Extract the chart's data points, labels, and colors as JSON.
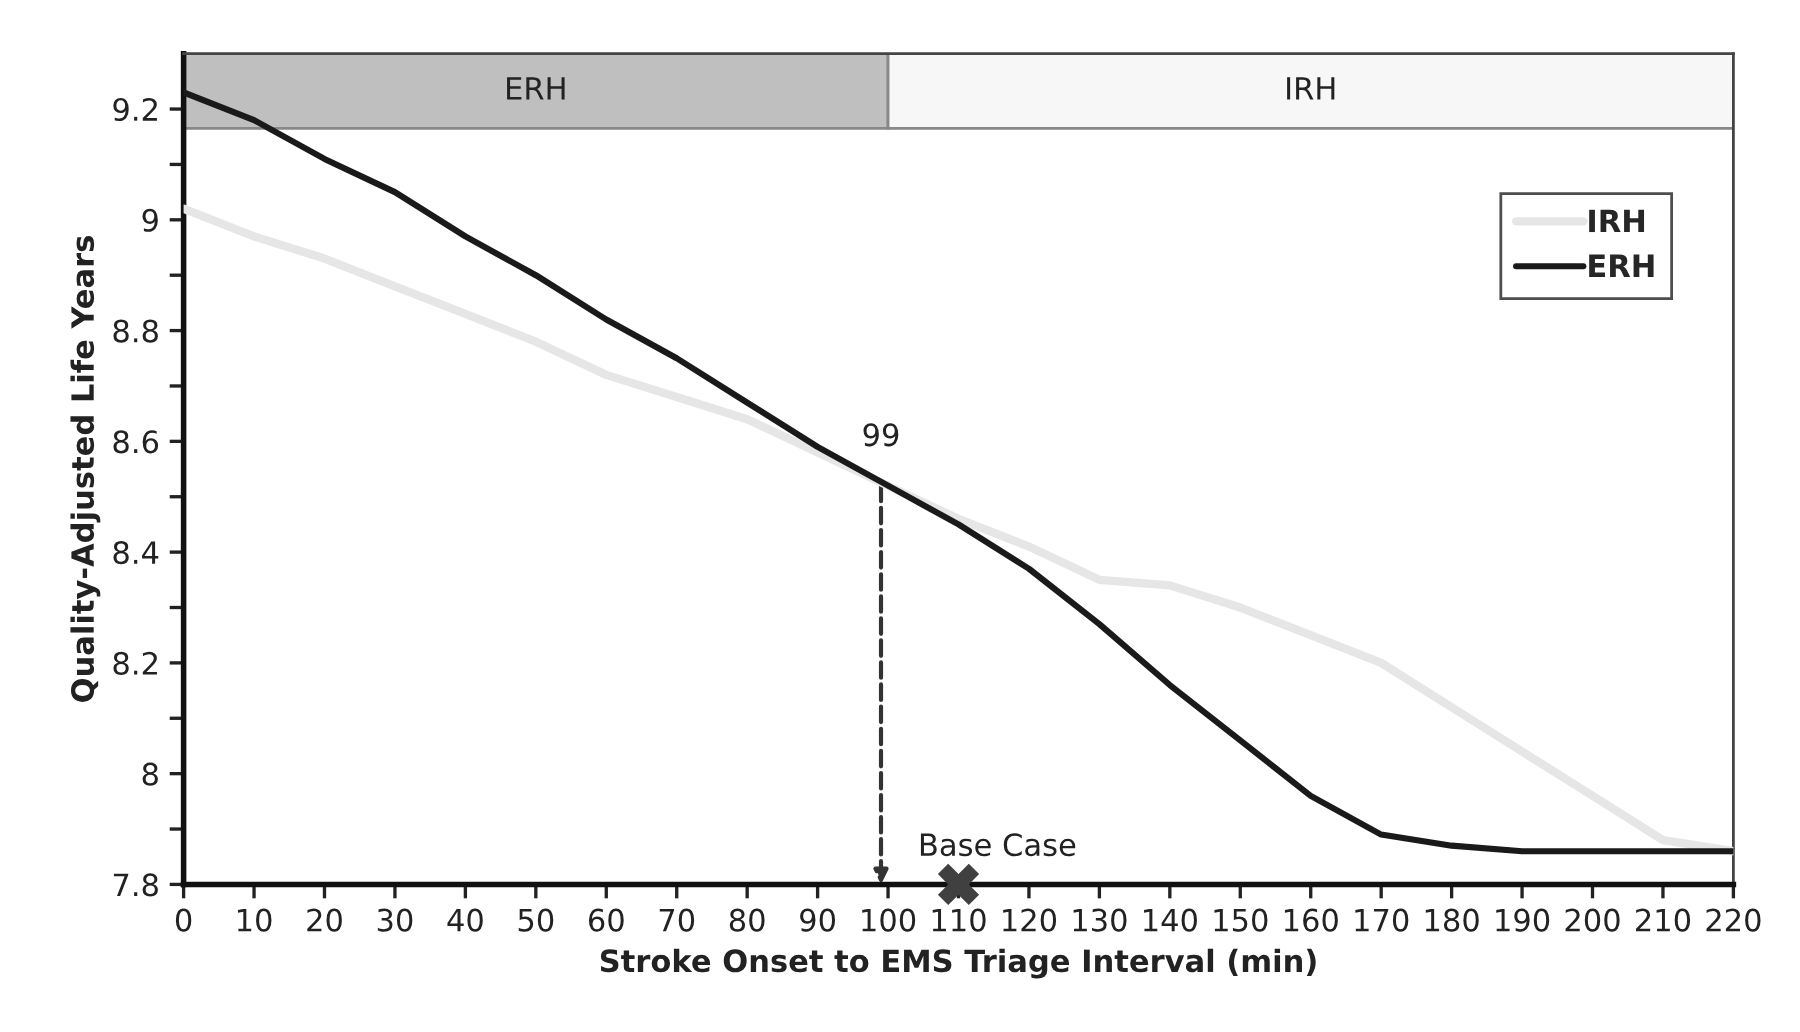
{
  "chart_data": {
    "type": "line",
    "xlabel": "Stroke Onset to EMS Triage Interval (min)",
    "ylabel": "Quality-Adjusted Life Years",
    "x": [
      0,
      10,
      20,
      30,
      40,
      50,
      60,
      70,
      80,
      90,
      100,
      110,
      120,
      130,
      140,
      150,
      160,
      170,
      180,
      190,
      200,
      210,
      220
    ],
    "series": [
      {
        "name": "IRH",
        "color": "#e6e6e6",
        "values": [
          9.02,
          8.97,
          8.93,
          8.88,
          8.83,
          8.78,
          8.72,
          8.68,
          8.64,
          8.58,
          8.52,
          8.46,
          8.41,
          8.35,
          8.34,
          8.3,
          8.25,
          8.2,
          8.12,
          8.04,
          7.96,
          7.88,
          7.86
        ]
      },
      {
        "name": "ERH",
        "color": "#1a1a1a",
        "values": [
          9.23,
          9.18,
          9.11,
          9.05,
          8.97,
          8.9,
          8.82,
          8.75,
          8.67,
          8.59,
          8.52,
          8.45,
          8.37,
          8.27,
          8.16,
          8.06,
          7.96,
          7.89,
          7.87,
          7.86,
          7.86,
          7.86,
          7.86
        ]
      },
      {
        "type": "scatter",
        "marker": "cross",
        "color": "#404040",
        "x": [
          110
        ],
        "values": [
          7.8
        ]
      }
    ],
    "xlim": [
      0,
      220
    ],
    "xticks": [
      0,
      10,
      20,
      30,
      40,
      50,
      60,
      70,
      80,
      90,
      100,
      110,
      120,
      130,
      140,
      150,
      160,
      170,
      180,
      190,
      200,
      210,
      220
    ],
    "ylim": [
      7.8,
      9.3
    ],
    "yticks": [
      {
        "value": 7.8,
        "label": "7.8"
      },
      {
        "value": 7.9,
        "label": null
      },
      {
        "value": 8.0,
        "label": "8"
      },
      {
        "value": 8.1,
        "label": null
      },
      {
        "value": 8.2,
        "label": "8.2"
      },
      {
        "value": 8.3,
        "label": null
      },
      {
        "value": 8.4,
        "label": "8.4"
      },
      {
        "value": 8.5,
        "label": null
      },
      {
        "value": 8.6,
        "label": "8.6"
      },
      {
        "value": 8.7,
        "label": null
      },
      {
        "value": 8.8,
        "label": "8.8"
      },
      {
        "value": 8.9,
        "label": null
      },
      {
        "value": 9.0,
        "label": "9"
      },
      {
        "value": 9.1,
        "label": null
      },
      {
        "value": 9.2,
        "label": "9.2"
      }
    ],
    "bands": [
      {
        "axis": "x",
        "from": 0,
        "to": 100,
        "label": "ERH",
        "color": "#bfbfbf"
      },
      {
        "axis": "x",
        "from": 100,
        "to": 220,
        "label": "IRH",
        "color": "#f7f7f7"
      }
    ],
    "annotations": [
      {
        "text": "99",
        "x": 99,
        "y": 8.52
      },
      {
        "text": "Base Case",
        "x": 110,
        "y": 7.8
      }
    ],
    "legend": "top right",
    "grid": false,
    "marker": "none",
    "line_style": "solid"
  }
}
